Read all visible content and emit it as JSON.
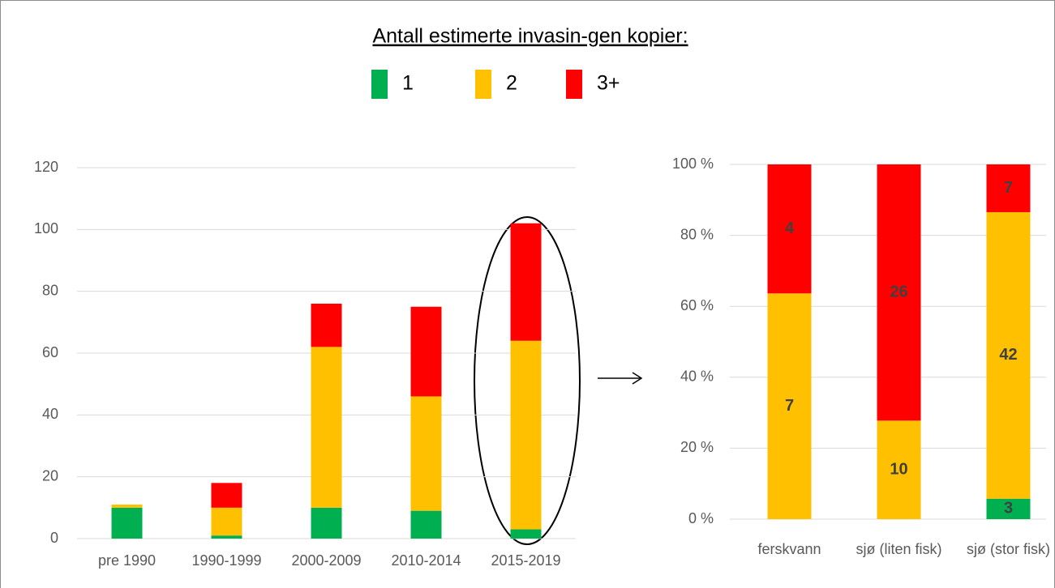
{
  "chart_data": [
    {
      "type": "bar",
      "stacking": "normal",
      "title": "Antall estimerte invasin-gen kopier:",
      "legend": "top",
      "categories": [
        "pre 1990",
        "1990-1999",
        "2000-2009",
        "2010-2014",
        "2015-2019"
      ],
      "series": [
        {
          "name": "1",
          "color": "#00b050",
          "values": [
            10,
            1,
            10,
            9,
            3
          ]
        },
        {
          "name": "2",
          "color": "#ffc000",
          "values": [
            1,
            9,
            52,
            37,
            61
          ]
        },
        {
          "name": "3+",
          "color": "#ff0000",
          "values": [
            0,
            8,
            14,
            29,
            38
          ]
        }
      ],
      "ylim": [
        0,
        120
      ],
      "yticks": [
        0,
        20,
        40,
        60,
        80,
        100,
        120
      ],
      "grid": true
    },
    {
      "type": "bar",
      "stacking": "percent",
      "show_values": true,
      "categories": [
        "ferskvann",
        "sjø (liten fisk)",
        "sjø (stor fisk)"
      ],
      "series": [
        {
          "color": "#00b050",
          "values": [
            0,
            0,
            3
          ]
        },
        {
          "color": "#ffc000",
          "values": [
            7,
            10,
            42
          ]
        },
        {
          "color": "#ff0000",
          "values": [
            4,
            26,
            7
          ]
        }
      ],
      "ylim": [
        0,
        100
      ],
      "yticks": [
        {
          "value": 0,
          "label": "0 %"
        },
        {
          "value": 20,
          "label": "20 %"
        },
        {
          "value": 40,
          "label": "40 %"
        },
        {
          "value": 60,
          "label": "60 %"
        },
        {
          "value": 80,
          "label": "80 %"
        },
        {
          "value": 100,
          "label": "100 %"
        }
      ],
      "grid": true
    }
  ]
}
